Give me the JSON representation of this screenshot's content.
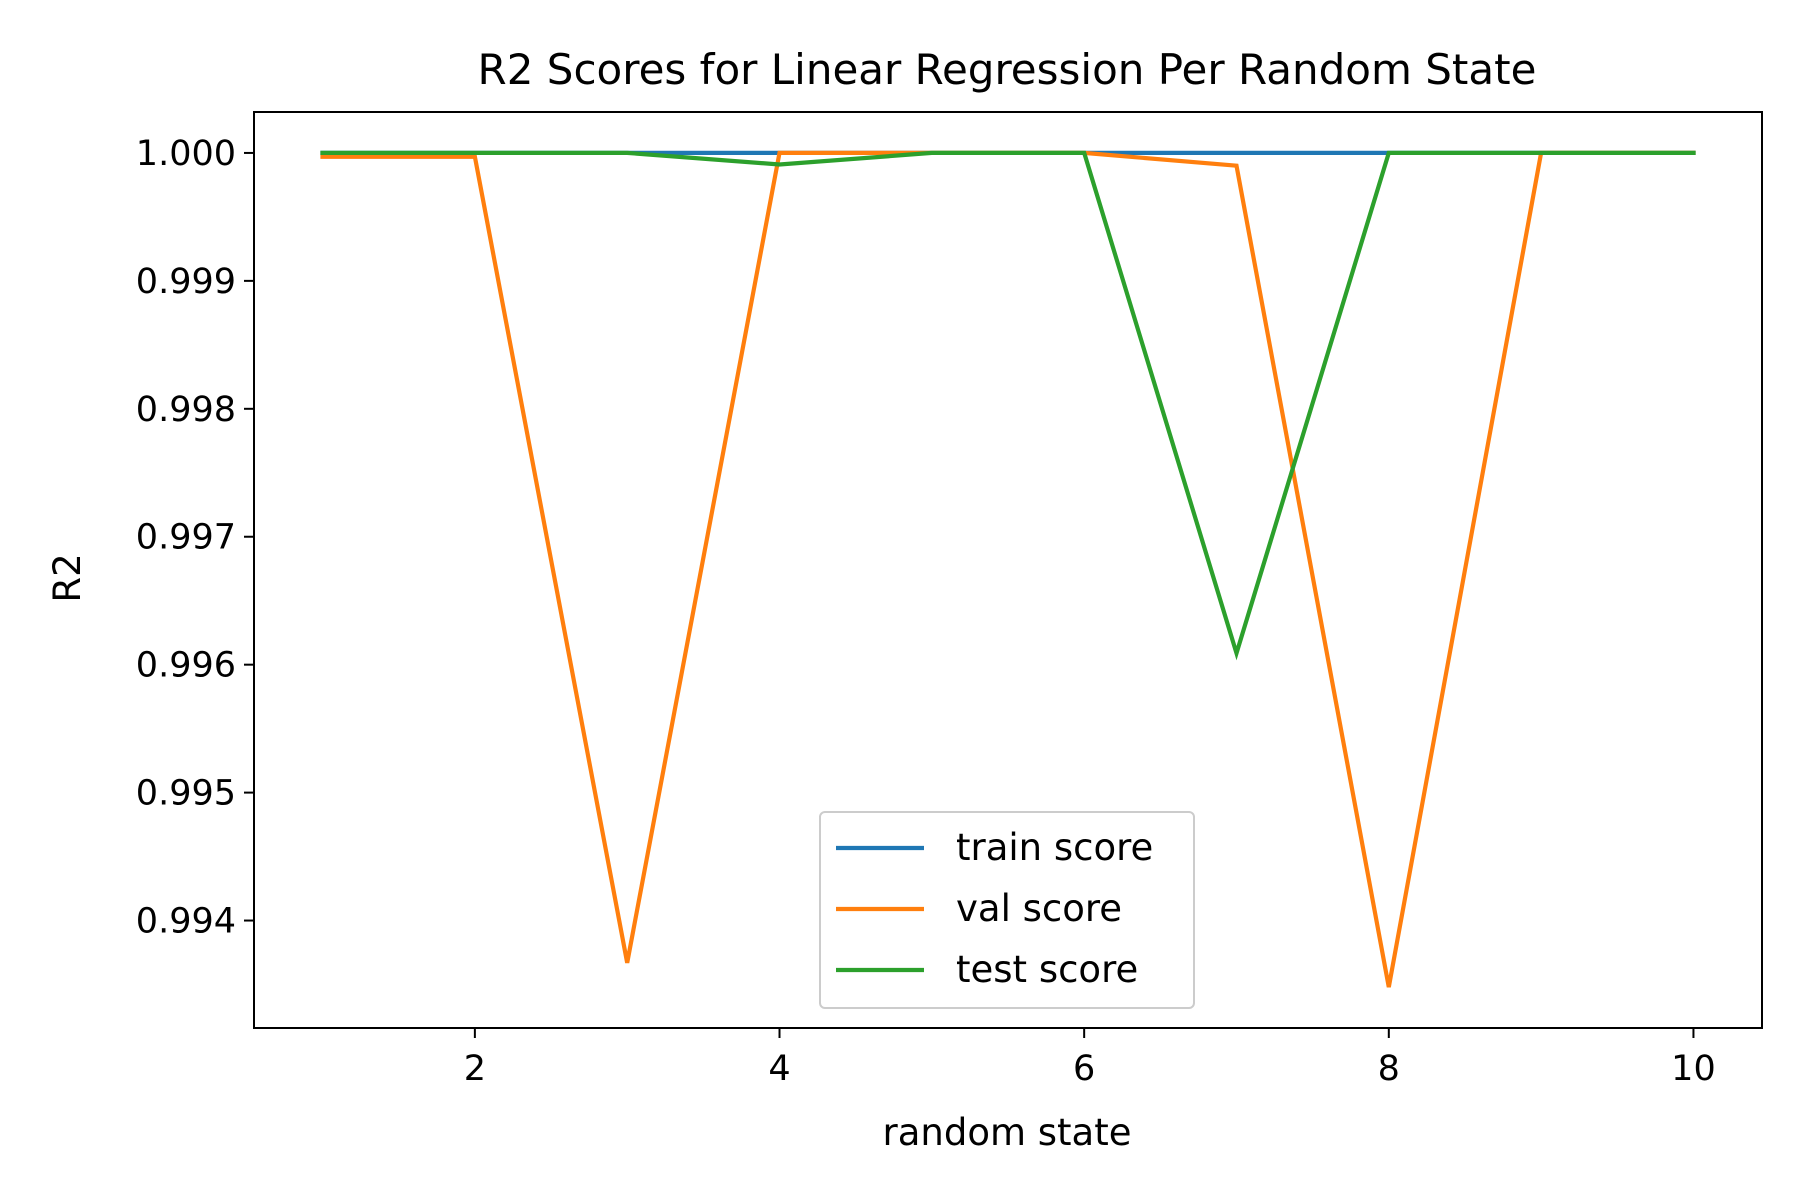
{
  "chart_data": {
    "type": "line",
    "title": "R2 Scores for Linear Regression Per Random State",
    "xlabel": "random state",
    "ylabel": "R2",
    "x": [
      1,
      2,
      3,
      4,
      5,
      6,
      7,
      8,
      9,
      10
    ],
    "xlim": [
      0.55,
      10.45
    ],
    "ylim": [
      0.99316,
      1.00032
    ],
    "xticks": [
      2,
      4,
      6,
      8,
      10
    ],
    "xtick_labels": [
      "2",
      "4",
      "6",
      "8",
      "10"
    ],
    "yticks": [
      0.994,
      0.995,
      0.996,
      0.997,
      0.998,
      0.999,
      1.0
    ],
    "ytick_labels": [
      "0.994",
      "0.995",
      "0.996",
      "0.997",
      "0.998",
      "0.999",
      "1.000"
    ],
    "grid": false,
    "legend_position": "bottom-center",
    "series": [
      {
        "name": "train score",
        "color": "#1f77b4",
        "values": [
          1.0,
          1.0,
          1.0,
          1.0,
          1.0,
          1.0,
          1.0,
          1.0,
          1.0,
          1.0
        ]
      },
      {
        "name": "val score",
        "color": "#ff7f0e",
        "values": [
          0.99997,
          0.99997,
          0.99367,
          1.0,
          1.0,
          1.0,
          0.9999,
          0.99348,
          1.0,
          1.0
        ]
      },
      {
        "name": "test score",
        "color": "#2ca02c",
        "values": [
          1.0,
          1.0,
          1.0,
          0.99991,
          1.0,
          1.0,
          0.99609,
          1.0,
          1.0,
          1.0
        ]
      }
    ]
  }
}
